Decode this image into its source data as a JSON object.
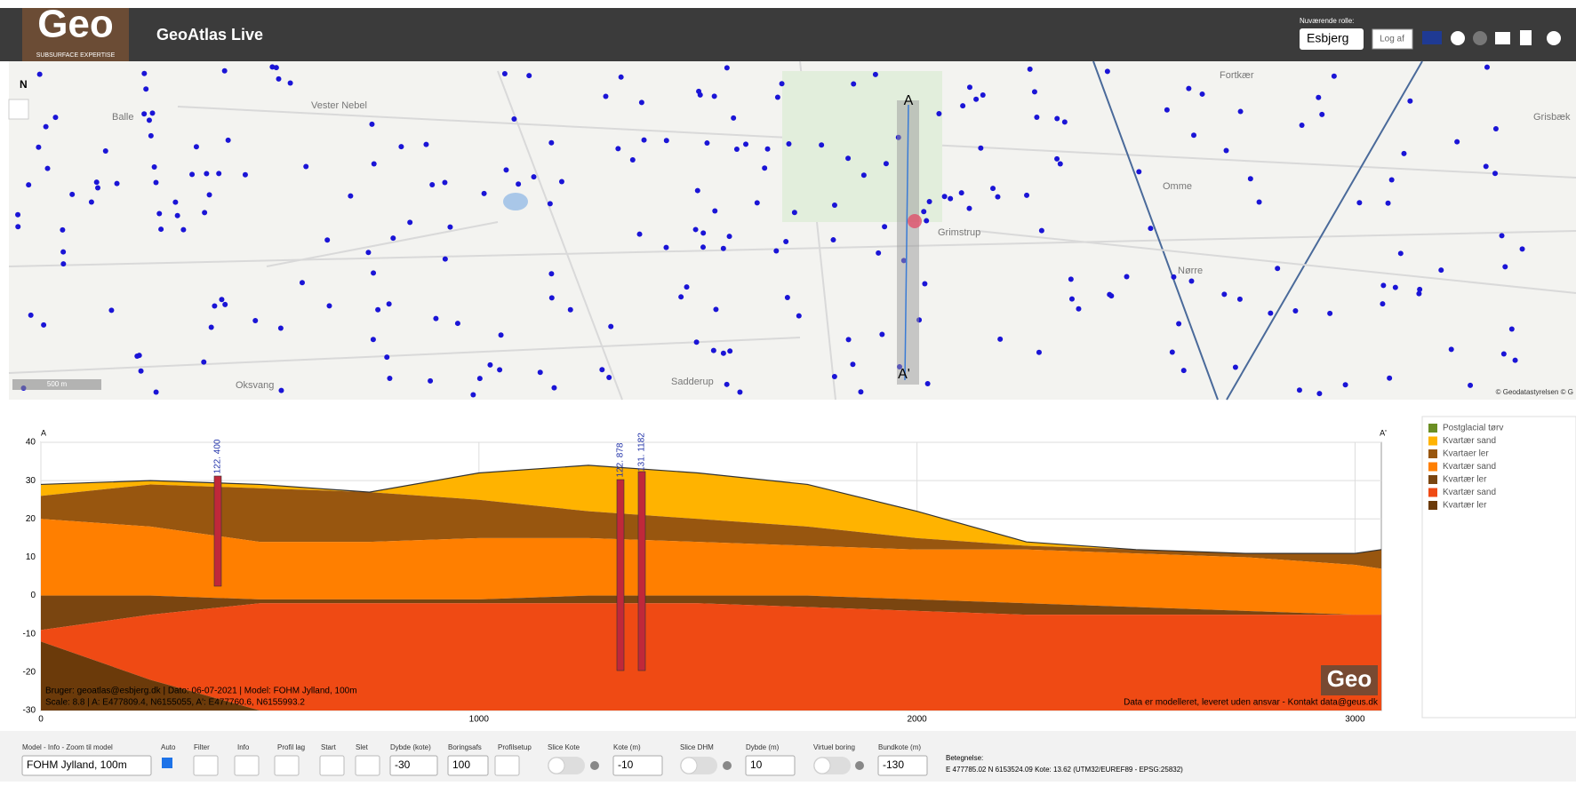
{
  "header": {
    "logo": "Geo",
    "logo_sub": "SUBSURFACE EXPERTISE",
    "title": "GeoAtlas Live",
    "role_label": "Nuværende rolle:",
    "role": "Esbjerg",
    "logout": "Log af"
  },
  "map": {
    "north": "N",
    "places": [
      "Vester Nebel",
      "Balle",
      "Grimstrup",
      "Oksvang",
      "Sadderup",
      "Fortkær",
      "Grisbæk",
      "Omme",
      "Nørre"
    ],
    "profile_start": "A",
    "profile_end": "A'",
    "scale": "500 m",
    "attribution": "© Geodatastyrelsen © G"
  },
  "chart_data": {
    "type": "area",
    "x_start": "A",
    "x_end": "A'",
    "x": [
      0,
      250,
      500,
      750,
      1000,
      1250,
      1500,
      1750,
      2000,
      2250,
      2500,
      2750,
      3000,
      3060
    ],
    "xlim": [
      0,
      3060
    ],
    "xticks": [
      0,
      1000,
      2000,
      3000
    ],
    "ylim": [
      -30,
      40
    ],
    "yticks": [
      -30,
      -20,
      -10,
      0,
      10,
      20,
      30,
      40
    ],
    "grid": true,
    "terrain": {
      "color": "#333333",
      "values": [
        29,
        30,
        29,
        27,
        32,
        34,
        32,
        29,
        22,
        14,
        12,
        11,
        11,
        12
      ]
    },
    "series": [
      {
        "name": "Postglacial tørv",
        "color": "#6b8e23",
        "values": [
          29,
          30,
          29,
          27,
          32,
          34,
          32,
          29,
          22,
          14,
          12,
          11,
          11,
          12
        ]
      },
      {
        "name": "Kvartær sand",
        "color": "#ffb300",
        "values": [
          29,
          30,
          29,
          27,
          32,
          34,
          32,
          29,
          22,
          14,
          12,
          11,
          11,
          12
        ]
      },
      {
        "name": "Kvartaer ler",
        "color": "#98560f",
        "values": [
          26,
          29,
          28,
          27,
          25,
          22,
          20,
          18,
          15,
          13,
          12,
          11,
          11,
          12
        ]
      },
      {
        "name": "Kvartær sand",
        "color": "#ff7f00",
        "values": [
          20,
          18,
          14,
          14,
          15,
          15,
          14,
          13,
          12,
          12,
          11,
          10,
          8,
          7
        ]
      },
      {
        "name": "Kvartær ler",
        "color": "#7a4510",
        "values": [
          0,
          0,
          -1,
          -1,
          -1,
          0,
          0,
          0,
          -1,
          -2,
          -3,
          -4,
          -5,
          -5
        ]
      },
      {
        "name": "Kvartær sand",
        "color": "#ef4a14",
        "values": [
          -9,
          -5,
          -2,
          -2,
          -2,
          -2,
          -2,
          -3,
          -4,
          -5,
          -5,
          -5,
          -5,
          -5
        ]
      },
      {
        "name": "Kvartær ler",
        "color": "#6b3a0a",
        "values": [
          -12,
          -22,
          -30,
          -30,
          -30,
          -30,
          -30,
          -30,
          -30,
          -30,
          -30,
          -30,
          -30,
          -30
        ]
      }
    ],
    "boreholes": [
      "122. 400",
      "122. 878",
      "131. 1182"
    ],
    "annotations": [
      "Bruger: geoatlas@esbjerg.dk | Dato: 06-07-2021 | Model: FOHM Jylland, 100m",
      "Scale: 8.8 | A: E477809.4, N6155055, A': E477760.6, N6155993.2",
      "Data er modelleret, leveret uden ansvar - Kontakt data@geus.dk"
    ],
    "watermark": "Geo"
  },
  "toolbar": {
    "model_label": "Model - Info - Zoom til model",
    "model": "FOHM Jylland, 100m",
    "auto": "Auto",
    "filter": "Filter",
    "info": "Info",
    "profile_layers": "Profil lag",
    "start": "Start",
    "delete": "Slet",
    "depth_label": "Dybde (kote)",
    "depth": "-30",
    "spacing_label": "Boringsafs",
    "spacing": "100",
    "setup": "Profilsetup",
    "slice_kote": "Slice Kote",
    "kote_label": "Kote (m)",
    "kote": "-10",
    "slice_dhm": "Slice DHM",
    "dhm_depth_label": "Dybde (m)",
    "dhm_depth": "10",
    "virtual": "Virtuel boring",
    "bottom_label": "Bundkote (m)",
    "bottom": "-130",
    "designation_label": "Betegnelse:",
    "designation": "E 477785.02 N 6153524.09 Kote: 13.62 (UTM32/EUREF89 - EPSG:25832)"
  }
}
